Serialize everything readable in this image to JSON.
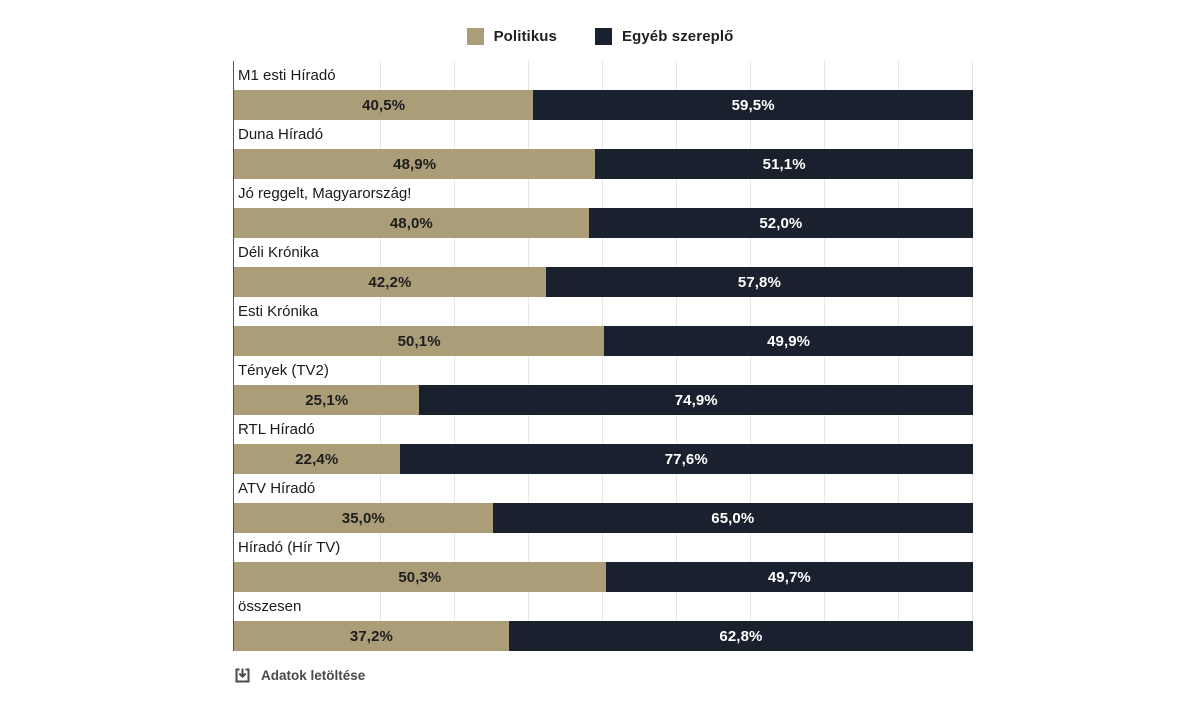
{
  "legend": {
    "items": [
      {
        "label": "Politikus",
        "color": "#aa9d77"
      },
      {
        "label": "Egyéb szereplő",
        "color": "#1a212e"
      }
    ]
  },
  "chart_data": {
    "type": "bar",
    "orientation": "horizontal",
    "stacked": true,
    "title": "",
    "xlabel": "",
    "ylabel": "",
    "xlim": [
      0,
      100
    ],
    "grid": {
      "vertical": true,
      "interval_percent": 10,
      "color": "#e7e7e7"
    },
    "legend_position": "top-center",
    "categories": [
      "M1 esti Híradó",
      "Duna Híradó",
      "Jó reggelt, Magyarország!",
      "Déli Krónika",
      "Esti Krónika",
      "Tények (TV2)",
      "RTL Híradó",
      "ATV Híradó",
      "Híradó (Hír TV)",
      "összesen"
    ],
    "series": [
      {
        "name": "Politikus",
        "id": "politikus",
        "color": "#aa9d77",
        "label_color": "#1d1d1d",
        "values": [
          40.5,
          48.9,
          48.0,
          42.2,
          50.1,
          25.1,
          22.4,
          35.0,
          50.3,
          37.2
        ],
        "labels": [
          "40,5%",
          "48,9%",
          "48,0%",
          "42,2%",
          "50,1%",
          "25,1%",
          "22,4%",
          "35,0%",
          "50,3%",
          "37,2%"
        ]
      },
      {
        "name": "Egyéb szereplő",
        "id": "egyeb-szereplo",
        "color": "#1a212e",
        "label_color": "#ffffff",
        "values": [
          59.5,
          51.1,
          52.0,
          57.8,
          49.9,
          74.9,
          77.6,
          65.0,
          49.7,
          62.8
        ],
        "labels": [
          "59,5%",
          "51,1%",
          "52,0%",
          "57,8%",
          "49,9%",
          "74,9%",
          "77,6%",
          "65,0%",
          "49,7%",
          "62,8%"
        ]
      }
    ]
  },
  "footer": {
    "download_label": "Adatok letöltése"
  }
}
